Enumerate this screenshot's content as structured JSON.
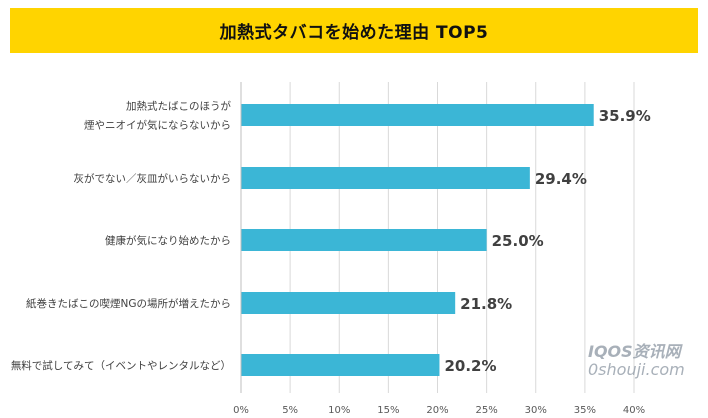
{
  "chart_data": {
    "type": "bar",
    "orientation": "horizontal",
    "title": "加熱式タバコを始めた理由 TOP5",
    "categories": [
      [
        "加熱式たばこのほうが",
        "煙やニオイが気にならないから"
      ],
      [
        "灰がでない／灰皿がいらないから"
      ],
      [
        "健康が気になり始めたから"
      ],
      [
        "紙巻きたばこの喫煙NGの場所が増えたから"
      ],
      [
        "無料で試してみて（イベントやレンタルなど）"
      ]
    ],
    "values": [
      35.9,
      29.4,
      25.0,
      21.8,
      20.2
    ],
    "value_labels": [
      "35.9%",
      "29.4%",
      "25.0%",
      "21.8%",
      "20.2%"
    ],
    "xlim": [
      0,
      40
    ],
    "x_ticks": [
      "0%",
      "5%",
      "10%",
      "15%",
      "20%",
      "25%",
      "30%",
      "35%",
      "40%"
    ],
    "grid": "vertical",
    "bar_color": "#3bb6d6",
    "grid_color": "#d9d9d9",
    "banner_color": "#ffd400"
  },
  "watermark": {
    "line1": "IQOS资讯网",
    "line2": "0shouji.com"
  }
}
